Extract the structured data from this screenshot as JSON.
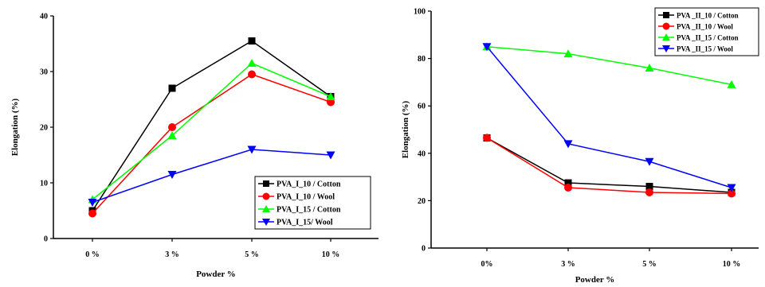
{
  "chart_data": [
    {
      "type": "line",
      "categories": [
        "0 %",
        "3 %",
        "5 %",
        "10 %"
      ],
      "ylim": [
        0,
        40
      ],
      "yticks": [
        "0",
        "10",
        "20",
        "30",
        "40"
      ],
      "xlabel": "Powder %",
      "ylabel": "Elongation (%)",
      "grid": false,
      "legend_position": "bottom-right",
      "series": [
        {
          "name": "PVA_I_10 / Cotton",
          "marker": "square",
          "color": "#000000",
          "values": [
            5.0,
            27.0,
            35.5,
            25.5
          ]
        },
        {
          "name": "PVA_I_10 / Wool",
          "marker": "circle",
          "color": "#ff0000",
          "values": [
            4.5,
            20.0,
            29.5,
            24.5
          ]
        },
        {
          "name": "PVA_I_15 / Cotton",
          "marker": "triangle-up",
          "color": "#00ff00",
          "values": [
            7.0,
            18.5,
            31.5,
            25.5
          ]
        },
        {
          "name": "PVA_I_15/ Wool",
          "marker": "triangle-down",
          "color": "#0000ff",
          "values": [
            6.5,
            11.5,
            16.0,
            15.0
          ]
        }
      ]
    },
    {
      "type": "line",
      "categories": [
        "0%",
        "3 %",
        "5 %",
        "10 %"
      ],
      "ylim": [
        0,
        100
      ],
      "yticks": [
        "0",
        "20",
        "40",
        "60",
        "80",
        "100"
      ],
      "xlabel": "Powder %",
      "ylabel": "Elongation (%)",
      "grid": false,
      "legend_position": "top-right",
      "series": [
        {
          "name": "PVA _II_10 / Cotton",
          "marker": "square",
          "color": "#000000",
          "values": [
            46.5,
            27.5,
            26.0,
            23.5
          ]
        },
        {
          "name": "PVA _II_10 / Wool",
          "marker": "circle",
          "color": "#ff0000",
          "values": [
            46.5,
            25.5,
            23.5,
            23.0
          ]
        },
        {
          "name": "PVA _II_15 / Cotton",
          "marker": "triangle-up",
          "color": "#00ff00",
          "values": [
            85.0,
            82.0,
            76.0,
            69.0
          ]
        },
        {
          "name": "PVA _II_15 / Wool",
          "marker": "triangle-down",
          "color": "#0000ff",
          "values": [
            85.0,
            44.0,
            36.5,
            25.5
          ]
        }
      ]
    }
  ]
}
